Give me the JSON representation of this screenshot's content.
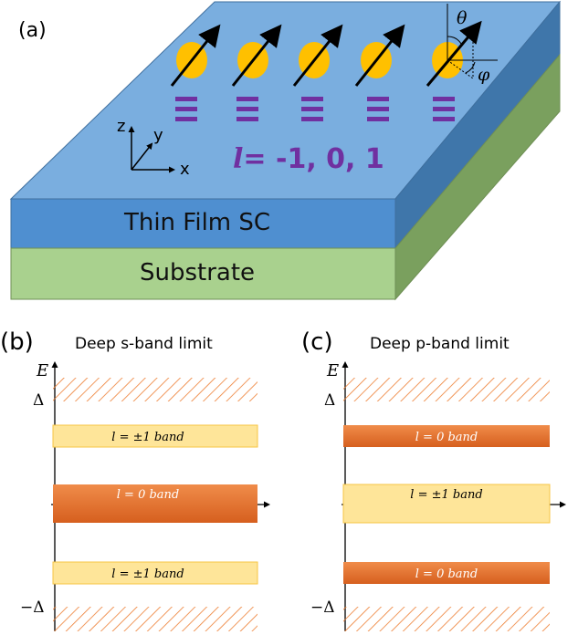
{
  "panel_a": {
    "label": "(a)",
    "top_layer_label": "Thin Film SC",
    "bottom_layer_label": "Substrate",
    "axis_x": "x",
    "axis_y": "y",
    "axis_z": "z",
    "angle_theta": "θ",
    "angle_phi": "φ",
    "l_symbol": "l",
    "l_values": "= -1, 0, 1",
    "colors": {
      "film_top": "#7aaedf",
      "film_front": "#4f8fd0",
      "film_side": "#3f76aa",
      "substrate_front": "#a9d18e",
      "substrate_side": "#7aa05e",
      "spin_ball": "#ffc000",
      "level_bars": "#7030a0"
    }
  },
  "panel_b": {
    "label": "(b)",
    "title": "Deep s-band limit",
    "energy_label": "E",
    "delta_pos": "Δ",
    "delta_neg": "−Δ",
    "bands": [
      "l = ±1 band",
      "l = 0 band",
      "l = ±1 band"
    ]
  },
  "panel_c": {
    "label": "(c)",
    "title": "Deep p-band limit",
    "energy_label": "E",
    "delta_pos": "Δ",
    "delta_neg": "−Δ",
    "bands": [
      "l = 0 band",
      "l = ±1 band",
      "l = 0 band"
    ]
  },
  "colors": {
    "light_band": "#fee599",
    "light_band_border": "#f7c544",
    "dark_band": "#e46c2a",
    "hatch": "#ed7d31"
  }
}
